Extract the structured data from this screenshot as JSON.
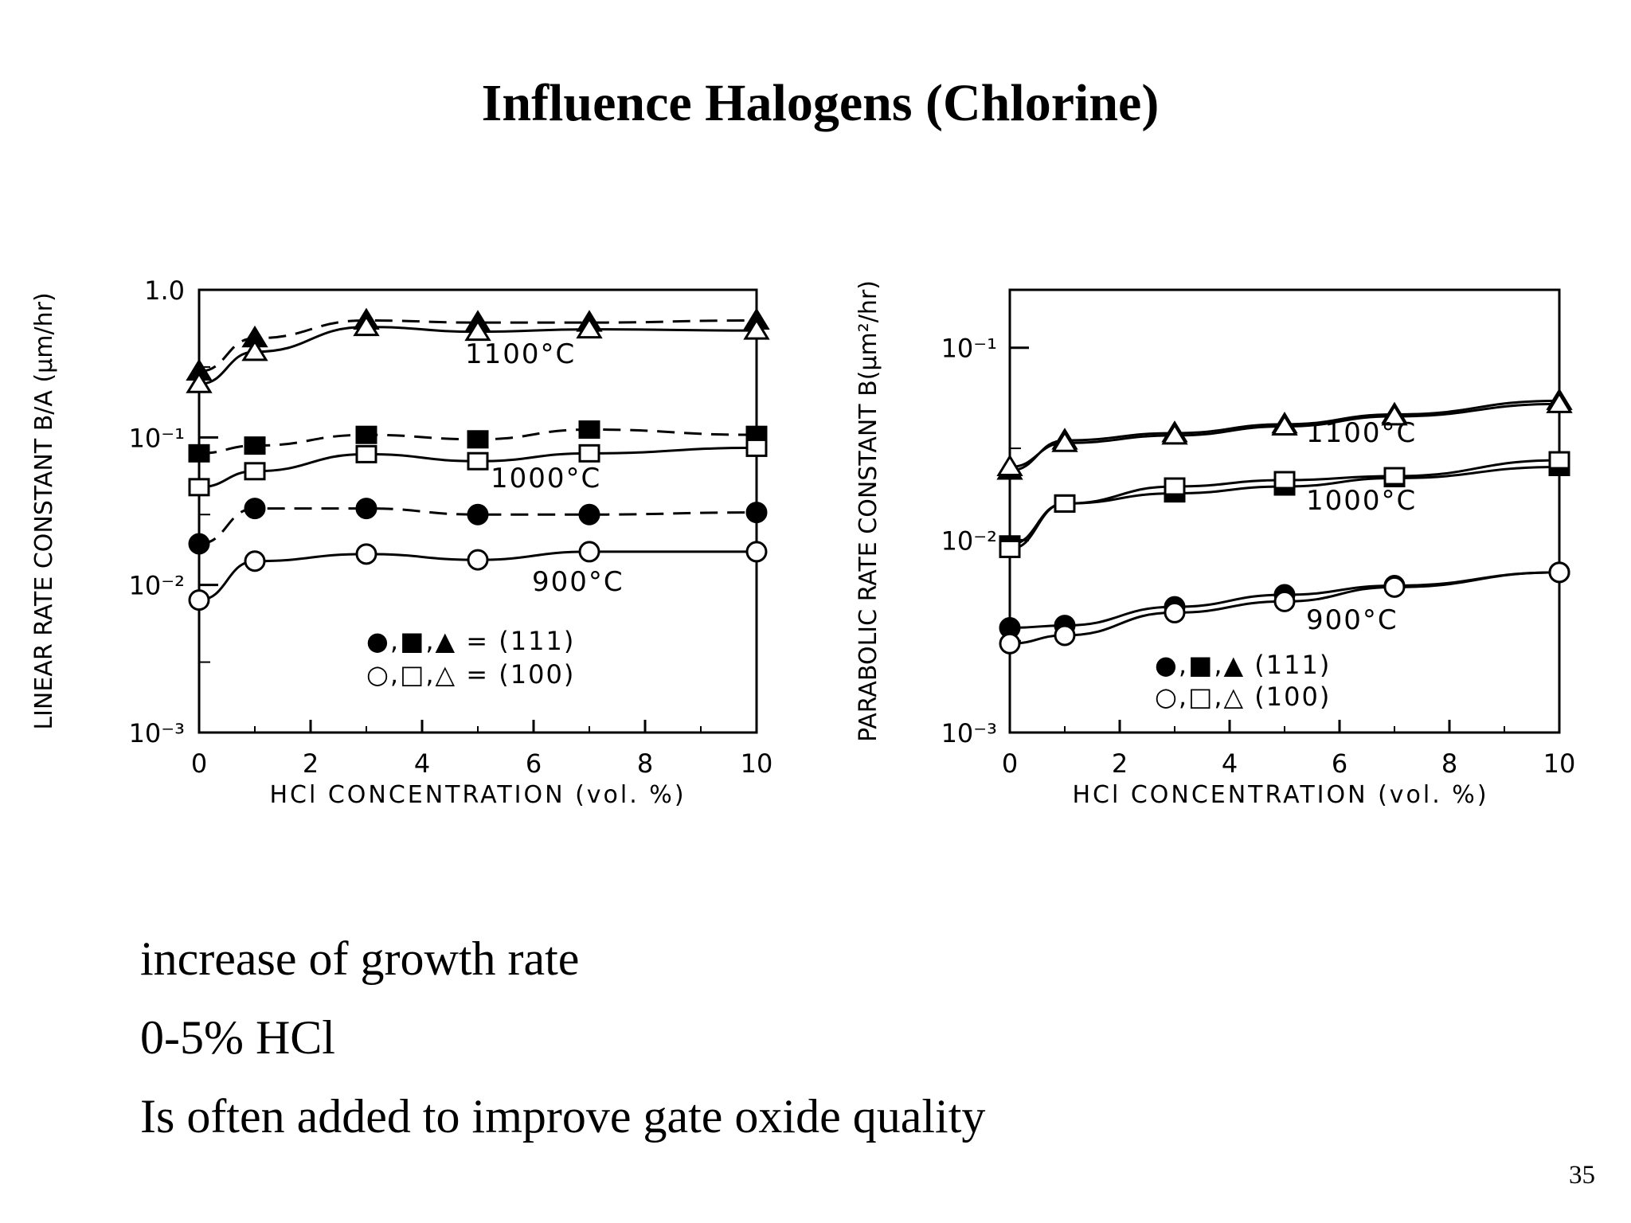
{
  "slide": {
    "title": "Influence Halogens (Chlorine)",
    "bullets": [
      "increase of growth rate",
      "0-5% HCl",
      "Is often added to improve gate oxide quality"
    ],
    "page_number": "35"
  },
  "chart_data": [
    {
      "type": "line",
      "title": "",
      "xlabel": "HCl CONCENTRATION (vol. %)",
      "ylabel": "LINEAR RATE CONSTANT B/A (μm/hr)",
      "xlim": [
        0,
        10
      ],
      "ylim": [
        0.001,
        1.0
      ],
      "yscale": "log",
      "xticks": [
        0,
        2,
        4,
        6,
        8,
        10
      ],
      "yticks": [
        {
          "value": 1.0,
          "label": "1.0"
        },
        {
          "value": 0.1,
          "label": "10⁻¹"
        },
        {
          "value": 0.01,
          "label": "10⁻²"
        },
        {
          "value": 0.001,
          "label": "10⁻³"
        }
      ],
      "curve_labels": [
        "1100°C",
        "1000°C",
        "900°C"
      ],
      "legend": [
        "●,■,▲ = (111)",
        "○,□,△ = (100)"
      ],
      "series": [
        {
          "temp": "1100°C",
          "orientation": "(111)",
          "marker": "triangle",
          "filled": true,
          "dashed": true,
          "x": [
            0,
            1,
            3,
            5,
            7,
            10
          ],
          "y": [
            0.28,
            0.47,
            0.62,
            0.6,
            0.6,
            0.62
          ]
        },
        {
          "temp": "1100°C",
          "orientation": "(100)",
          "marker": "triangle",
          "filled": false,
          "dashed": false,
          "x": [
            0,
            1,
            3,
            5,
            7,
            10
          ],
          "y": [
            0.23,
            0.38,
            0.56,
            0.52,
            0.54,
            0.53
          ]
        },
        {
          "temp": "1000°C",
          "orientation": "(111)",
          "marker": "square",
          "filled": true,
          "dashed": true,
          "x": [
            0,
            1,
            3,
            5,
            7,
            10
          ],
          "y": [
            0.078,
            0.088,
            0.104,
            0.097,
            0.113,
            0.104
          ]
        },
        {
          "temp": "1000°C",
          "orientation": "(100)",
          "marker": "square",
          "filled": false,
          "dashed": false,
          "x": [
            0,
            1,
            3,
            5,
            7,
            10
          ],
          "y": [
            0.046,
            0.059,
            0.077,
            0.069,
            0.078,
            0.085
          ]
        },
        {
          "temp": "900°C",
          "orientation": "(111)",
          "marker": "circle",
          "filled": true,
          "dashed": true,
          "x": [
            0,
            1,
            3,
            5,
            7,
            10
          ],
          "y": [
            0.019,
            0.033,
            0.033,
            0.03,
            0.03,
            0.031
          ]
        },
        {
          "temp": "900°C",
          "orientation": "(100)",
          "marker": "circle",
          "filled": false,
          "dashed": false,
          "x": [
            0,
            1,
            3,
            5,
            7,
            10
          ],
          "y": [
            0.0079,
            0.0145,
            0.0162,
            0.0148,
            0.0168,
            0.0168
          ]
        }
      ]
    },
    {
      "type": "line",
      "title": "",
      "xlabel": "HCl CONCENTRATION (vol. %)",
      "ylabel": "PARABOLIC RATE CONSTANT B(μm²/hr)",
      "xlim": [
        0,
        10
      ],
      "ylim": [
        0.001,
        0.2
      ],
      "yscale": "log",
      "xticks": [
        0,
        2,
        4,
        6,
        8,
        10
      ],
      "yticks": [
        {
          "value": 0.1,
          "label": "10⁻¹"
        },
        {
          "value": 0.01,
          "label": "10⁻²"
        },
        {
          "value": 0.001,
          "label": "10⁻³"
        }
      ],
      "curve_labels": [
        "1100°C",
        "1000°C",
        "900°C"
      ],
      "legend": [
        "●,■,▲  (111)",
        "○,□,△  (100)"
      ],
      "series": [
        {
          "temp": "1100°C",
          "orientation": "(111)",
          "marker": "triangle",
          "filled": true,
          "dashed": false,
          "x": [
            0,
            1,
            3,
            5,
            7,
            10
          ],
          "y": [
            0.023,
            0.033,
            0.036,
            0.04,
            0.045,
            0.053
          ]
        },
        {
          "temp": "1100°C",
          "orientation": "(100)",
          "marker": "triangle",
          "filled": false,
          "dashed": false,
          "x": [
            0,
            1,
            3,
            5,
            7,
            10
          ],
          "y": [
            0.024,
            0.032,
            0.035,
            0.039,
            0.044,
            0.051
          ]
        },
        {
          "temp": "1000°C",
          "orientation": "(111)",
          "marker": "square",
          "filled": true,
          "dashed": false,
          "x": [
            0,
            1,
            3,
            5,
            7,
            10
          ],
          "y": [
            0.0095,
            0.0155,
            0.0175,
            0.019,
            0.021,
            0.024
          ]
        },
        {
          "temp": "1000°C",
          "orientation": "(100)",
          "marker": "square",
          "filled": false,
          "dashed": false,
          "x": [
            0,
            1,
            3,
            5,
            7,
            10
          ],
          "y": [
            0.009,
            0.0155,
            0.019,
            0.0205,
            0.0215,
            0.026
          ]
        },
        {
          "temp": "900°C",
          "orientation": "(111)",
          "marker": "circle",
          "filled": true,
          "dashed": false,
          "x": [
            0,
            1,
            3,
            5,
            7,
            10
          ],
          "y": [
            0.0035,
            0.0036,
            0.0045,
            0.0052,
            0.0058,
            0.0068
          ]
        },
        {
          "temp": "900°C",
          "orientation": "(100)",
          "marker": "circle",
          "filled": false,
          "dashed": false,
          "x": [
            0,
            1,
            3,
            5,
            7,
            10
          ],
          "y": [
            0.0029,
            0.0032,
            0.0042,
            0.0048,
            0.0057,
            0.0068
          ]
        }
      ]
    }
  ]
}
